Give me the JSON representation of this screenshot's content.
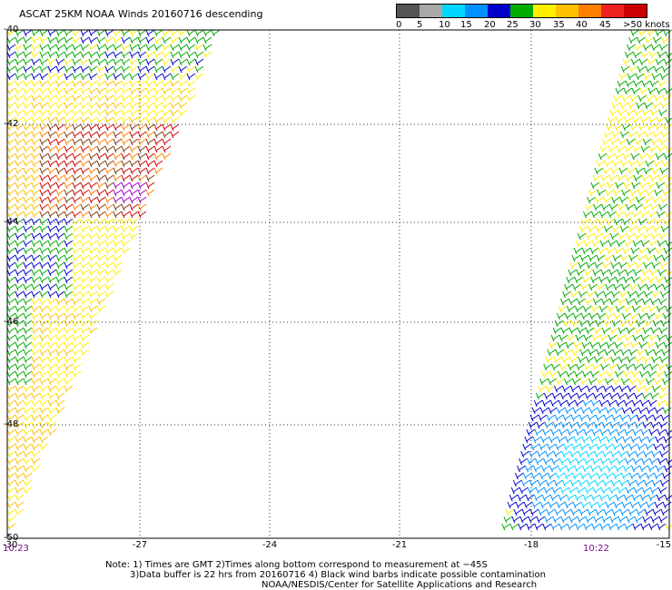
{
  "title": "ASCAT 25KM NOAA Winds 20160716 descending",
  "legend": {
    "colors": [
      "#555555",
      "#a8a8a8",
      "#00d6ff",
      "#0090ff",
      "#0000cc",
      "#00aa00",
      "#ffee00",
      "#ffc000",
      "#ff8000",
      "#ee2020",
      "#cc0000",
      "#7a3a10",
      "#b06030",
      "#ee00ee",
      "#a000c8",
      "#6a00a8"
    ],
    "ticks": [
      "0",
      "5",
      "10",
      "15",
      "20",
      "25",
      "30",
      "35",
      "40",
      "45",
      ">50 knots"
    ]
  },
  "lat_labels": [
    "-40",
    "-42",
    "-44",
    "-46",
    "-48",
    "-50"
  ],
  "lon_labels": [
    "-30",
    "-27",
    "-24",
    "-21",
    "-18",
    "-15"
  ],
  "time_left": "10:23",
  "time_right": "10:22",
  "notes": [
    "Note: 1) Times are GMT 2)Times along bottom correspond to measurement at −45S",
    "3)Data buffer is 22 hrs from 20160716 4) Black wind barbs indicate possible contamination",
    "NOAA/NESDIS/Center for Satellite Applications and Research"
  ]
}
